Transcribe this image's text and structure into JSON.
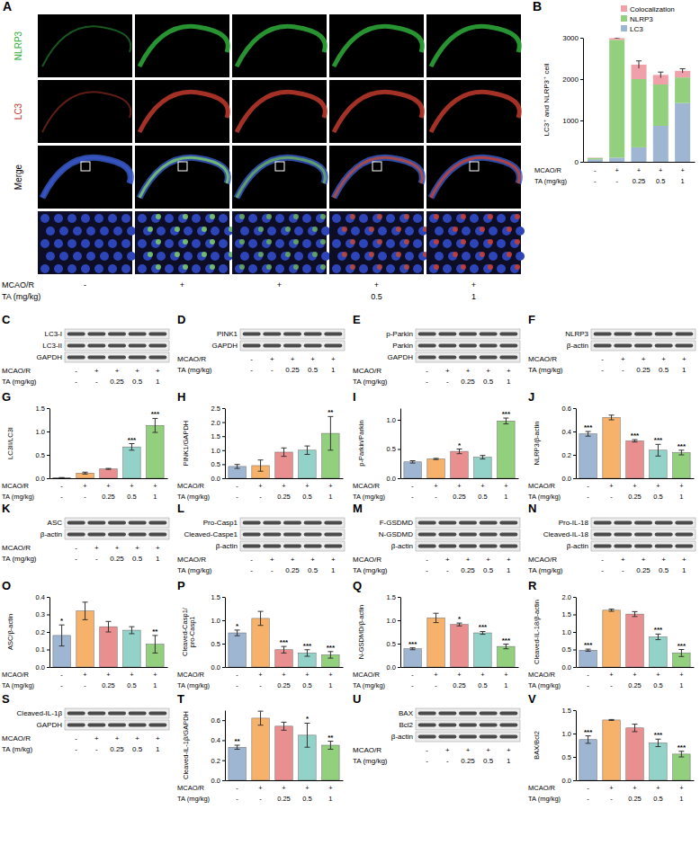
{
  "conditions": [
    {
      "label": "MCAO/R",
      "values": [
        "-",
        "+",
        "+",
        "+",
        "+"
      ]
    },
    {
      "label": "TA (mg/kg)",
      "values": [
        "-",
        "-",
        "0.25",
        "0.5",
        "1"
      ]
    }
  ],
  "image_panel": {
    "letter": "A",
    "rows": [
      "NLRP3",
      "LC3",
      "Merge"
    ],
    "conditions": [
      {
        "label": "MCAO/R",
        "values": [
          "-",
          "+",
          "+",
          "+",
          "+"
        ]
      },
      {
        "label": "TA (mg/kg)",
        "values": [
          null,
          null,
          null,
          "0.5",
          "1"
        ]
      }
    ]
  },
  "blots": [
    {
      "letter": "C",
      "bands": [
        "LC3-I",
        "LC3-II",
        "GAPDH"
      ]
    },
    {
      "letter": "D",
      "bands": [
        "PINK1",
        "GAPDH"
      ]
    },
    {
      "letter": "E",
      "bands": [
        "p-Parkin",
        "Parkin",
        "GAPDH"
      ]
    },
    {
      "letter": "F",
      "bands": [
        "NLRP3",
        "β-actin"
      ]
    },
    {
      "letter": "K",
      "bands": [
        "ASC",
        "β-actin"
      ]
    },
    {
      "letter": "L",
      "bands": [
        "Pro-Casp1",
        "Cleaved-Caspe1",
        "β-actin"
      ]
    },
    {
      "letter": "M",
      "bands": [
        "F-GSDMD",
        "N-GSDMD",
        "β-actin"
      ]
    },
    {
      "letter": "N",
      "bands": [
        "Pro-IL-18",
        "Cleaved-IL-18",
        "β-actin"
      ]
    },
    {
      "letter": "S",
      "bands": [
        "Cleaved-IL-1β",
        "GAPDH"
      ],
      "conditions": [
        {
          "label": "MCAO/R",
          "values": [
            "-",
            "+",
            "+",
            "+",
            "+"
          ]
        },
        {
          "label": "TA (m/kg)",
          "values": [
            "-",
            "-",
            "0.25",
            "0.5",
            "1"
          ]
        }
      ]
    },
    {
      "letter": "U",
      "bands": [
        "BAX",
        "Bcl2",
        "β-actin"
      ]
    }
  ],
  "chart_data": [
    {
      "type": "bar",
      "stacked": true,
      "panel": "B",
      "y_label": "LC3⁺ and NLRP3⁺ cell",
      "categories": [
        null,
        null,
        null,
        null,
        null
      ],
      "series": [
        {
          "name": "LC3",
          "color": "#9fb6d3",
          "values": [
            60,
            100,
            350,
            870,
            1420
          ]
        },
        {
          "name": "NLRP3",
          "color": "#93d07e",
          "values": [
            30,
            2850,
            1650,
            1000,
            620
          ]
        },
        {
          "name": "Colocalization",
          "color": "#f0a0a8",
          "values": [
            10,
            40,
            350,
            230,
            160
          ],
          "errors": [
            null,
            10,
            90,
            70,
            50
          ]
        }
      ],
      "ylim": [
        0,
        3000
      ],
      "yticks": [
        0,
        1000,
        2000,
        3000
      ],
      "legend": "top-right"
    },
    {
      "type": "bar",
      "panel": "G",
      "y_label": "LC3II/LC3I",
      "categories": [
        null,
        null,
        null,
        null,
        null
      ],
      "values": [
        0.01,
        0.11,
        0.2,
        0.67,
        1.13
      ],
      "errors": [
        0.005,
        0.02,
        0.01,
        0.07,
        0.15
      ],
      "annotations": [
        null,
        null,
        null,
        "***",
        "***"
      ],
      "colors": [
        "#9fb6d3",
        "#f6b26b",
        "#ea8f8f",
        "#93d2c9",
        "#93d07e"
      ],
      "ylim": [
        0,
        1.5
      ],
      "yticks": [
        {
          "value": 0,
          "label": "0.0"
        },
        0.5,
        {
          "value": 1,
          "label": "1.0"
        },
        1.5
      ]
    },
    {
      "type": "bar",
      "panel": "H",
      "y_label": "PINK1/GAPDH",
      "categories": [
        null,
        null,
        null,
        null,
        null
      ],
      "values": [
        0.42,
        0.45,
        0.93,
        1.0,
        1.6
      ],
      "errors": [
        0.07,
        0.2,
        0.15,
        0.15,
        0.6
      ],
      "annotations": [
        null,
        null,
        null,
        null,
        "**"
      ],
      "colors": [
        "#9fb6d3",
        "#f6b26b",
        "#ea8f8f",
        "#93d2c9",
        "#93d07e"
      ],
      "ylim": [
        0,
        2.5
      ],
      "yticks": [
        {
          "value": 0,
          "label": "0.0"
        },
        0.5,
        {
          "value": 1,
          "label": "1.0"
        },
        1.5,
        {
          "value": 2,
          "label": "2.0"
        },
        2.5
      ]
    },
    {
      "type": "bar",
      "panel": "I",
      "y_label": "p-Parkin/Parkin",
      "categories": [
        null,
        null,
        null,
        null,
        null
      ],
      "values": [
        0.28,
        0.33,
        0.46,
        0.36,
        0.98
      ],
      "errors": [
        0.02,
        0.01,
        0.04,
        0.03,
        0.05
      ],
      "annotations": [
        null,
        null,
        "*",
        null,
        "***"
      ],
      "colors": [
        "#9fb6d3",
        "#f6b26b",
        "#ea8f8f",
        "#93d2c9",
        "#93d07e"
      ],
      "ylim": [
        0,
        1.2
      ],
      "yticks": [
        {
          "value": 0,
          "label": "0.0"
        },
        0.5,
        {
          "value": 1,
          "label": "1.0"
        }
      ]
    },
    {
      "type": "bar",
      "panel": "J",
      "y_label": "NLRP3/β-actin",
      "categories": [
        null,
        null,
        null,
        null,
        null
      ],
      "values": [
        0.38,
        0.52,
        0.32,
        0.24,
        0.22
      ],
      "errors": [
        0.02,
        0.02,
        0.01,
        0.05,
        0.02
      ],
      "annotations": [
        "***",
        null,
        "***",
        "***",
        "***"
      ],
      "colors": [
        "#9fb6d3",
        "#f6b26b",
        "#ea8f8f",
        "#93d2c9",
        "#93d07e"
      ],
      "ylim": [
        0,
        0.6
      ],
      "yticks": [
        {
          "value": 0,
          "label": "0.0"
        },
        0.2,
        0.4,
        0.6
      ]
    },
    {
      "type": "bar",
      "panel": "O",
      "y_label": "ASC/β-actin",
      "categories": [
        null,
        null,
        null,
        null,
        null
      ],
      "values": [
        0.18,
        0.32,
        0.23,
        0.21,
        0.13
      ],
      "errors": [
        0.06,
        0.05,
        0.03,
        0.02,
        0.05
      ],
      "annotations": [
        "*",
        null,
        null,
        null,
        "**"
      ],
      "colors": [
        "#9fb6d3",
        "#f6b26b",
        "#ea8f8f",
        "#93d2c9",
        "#93d07e"
      ],
      "ylim": [
        0,
        0.4
      ],
      "yticks": [
        {
          "value": 0,
          "label": "0.0"
        },
        0.1,
        0.2,
        0.3,
        0.4
      ]
    },
    {
      "type": "bar",
      "panel": "P",
      "y_label": "Cleaved-Casp1/pro-Casp1",
      "categories": [
        null,
        null,
        null,
        null,
        null
      ],
      "values": [
        0.73,
        1.04,
        0.37,
        0.3,
        0.26
      ],
      "errors": [
        0.06,
        0.15,
        0.07,
        0.07,
        0.07
      ],
      "annotations": [
        "*",
        null,
        "***",
        "***",
        "***"
      ],
      "colors": [
        "#9fb6d3",
        "#f6b26b",
        "#ea8f8f",
        "#93d2c9",
        "#93d07e"
      ],
      "ylim": [
        0,
        1.5
      ],
      "yticks": [
        {
          "value": 0,
          "label": "0.0"
        },
        0.5,
        {
          "value": 1,
          "label": "1.0"
        },
        1.5
      ]
    },
    {
      "type": "bar",
      "panel": "Q",
      "y_label": "N-GSDMD/β-actin",
      "categories": [
        null,
        null,
        null,
        null,
        null
      ],
      "values": [
        0.39,
        1.05,
        0.91,
        0.73,
        0.44
      ],
      "errors": [
        0.02,
        0.1,
        0.03,
        0.03,
        0.05
      ],
      "annotations": [
        "***",
        null,
        "*",
        "***",
        "***"
      ],
      "colors": [
        "#9fb6d3",
        "#f6b26b",
        "#ea8f8f",
        "#93d2c9",
        "#93d07e"
      ],
      "ylim": [
        0,
        1.5
      ],
      "yticks": [
        {
          "value": 0,
          "label": "0.0"
        },
        0.5,
        {
          "value": 1,
          "label": "1.0"
        },
        1.5
      ]
    },
    {
      "type": "bar",
      "panel": "R",
      "y_label": "Cleaved-IL-18/β-actin",
      "categories": [
        null,
        null,
        null,
        null,
        null
      ],
      "values": [
        0.48,
        1.62,
        1.51,
        0.86,
        0.4
      ],
      "errors": [
        0.03,
        0.03,
        0.07,
        0.08,
        0.1
      ],
      "annotations": [
        "***",
        null,
        null,
        "***",
        "***"
      ],
      "colors": [
        "#9fb6d3",
        "#f6b26b",
        "#ea8f8f",
        "#93d2c9",
        "#93d07e"
      ],
      "ylim": [
        0,
        2
      ],
      "yticks": [
        {
          "value": 0,
          "label": "0.0"
        },
        0.5,
        {
          "value": 1,
          "label": "1.0"
        },
        1.5,
        {
          "value": 2,
          "label": "2.0"
        }
      ]
    },
    {
      "type": "bar",
      "panel": "T",
      "y_label": "Cleaved-IL-1β/GAPDH",
      "categories": [
        null,
        null,
        null,
        null,
        null
      ],
      "values": [
        0.33,
        0.62,
        0.54,
        0.45,
        0.35
      ],
      "errors": [
        0.02,
        0.07,
        0.04,
        0.12,
        0.04
      ],
      "annotations": [
        "**",
        null,
        null,
        "*",
        "**"
      ],
      "colors": [
        "#9fb6d3",
        "#f6b26b",
        "#ea8f8f",
        "#93d2c9",
        "#93d07e"
      ],
      "ylim": [
        0,
        0.7
      ],
      "yticks": [
        {
          "value": 0,
          "label": "0.0"
        },
        0.2,
        0.4,
        0.6
      ]
    },
    {
      "type": "bar",
      "panel": "V",
      "y_label": "BAX/Bcl2",
      "categories": [
        null,
        null,
        null,
        null,
        null
      ],
      "values": [
        0.87,
        1.29,
        1.12,
        0.8,
        0.56
      ],
      "errors": [
        0.08,
        0.01,
        0.08,
        0.08,
        0.06
      ],
      "annotations": [
        "***",
        null,
        null,
        "***",
        "***"
      ],
      "colors": [
        "#9fb6d3",
        "#f6b26b",
        "#ea8f8f",
        "#93d2c9",
        "#93d07e"
      ],
      "ylim": [
        0,
        1.5
      ],
      "yticks": [
        {
          "value": 0,
          "label": "0.0"
        },
        0.5,
        {
          "value": 1,
          "label": "1.0"
        },
        1.5
      ]
    }
  ]
}
